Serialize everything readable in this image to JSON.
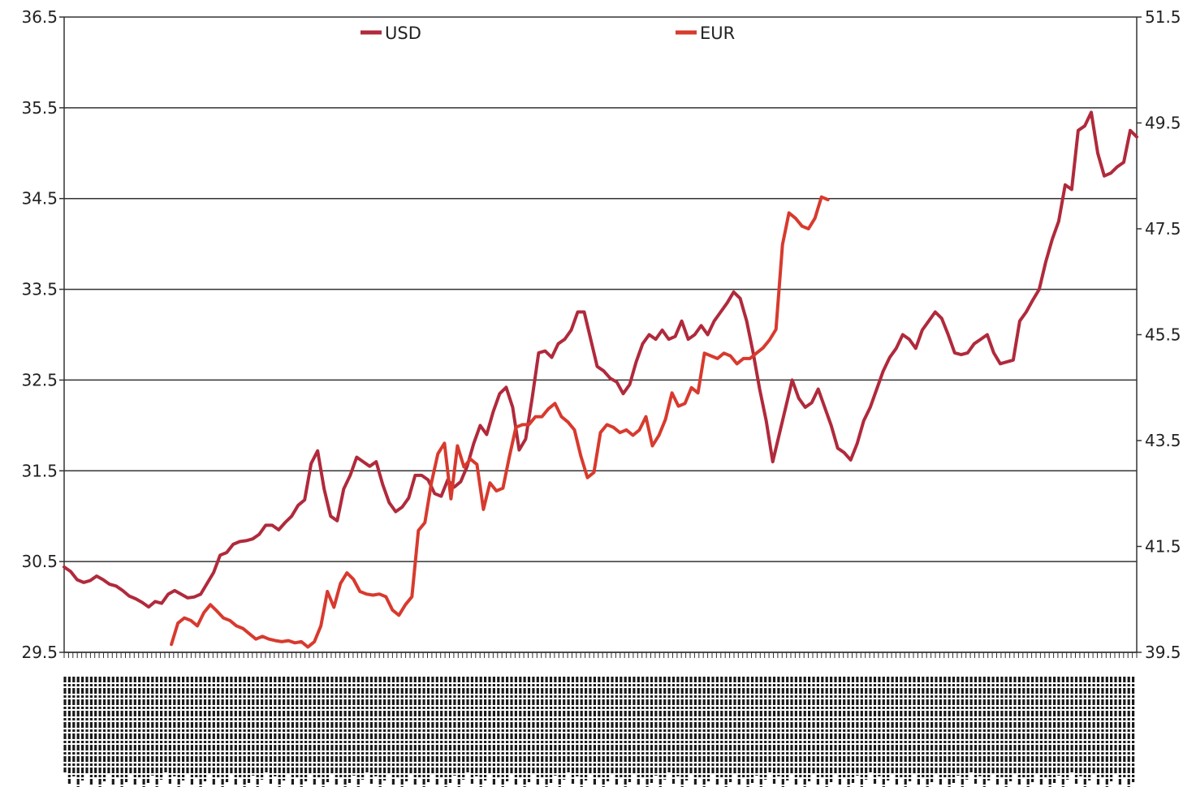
{
  "chart_data": {
    "type": "line",
    "title": "",
    "xlabel": "",
    "ylabel": "",
    "grid": true,
    "legend_placement": "top-center",
    "y_left": {
      "range": [
        29.5,
        36.5
      ],
      "ticks": [
        "29.5",
        "30.5",
        "31.5",
        "32.5",
        "33.5",
        "34.5",
        "35.5",
        "36.5"
      ]
    },
    "y_right": {
      "range": [
        39.5,
        51.5
      ],
      "ticks": [
        "39.5",
        "41.5",
        "43.5",
        "45.5",
        "47.5",
        "49.5",
        "51.5"
      ]
    },
    "x": {
      "count": 245,
      "labels_note": ""
    },
    "series": [
      {
        "name": "USD",
        "axis": "left",
        "color": "#b02a3c",
        "points": [
          [
            0,
            30.44
          ],
          [
            2,
            30.39
          ],
          [
            4,
            30.3
          ],
          [
            6,
            30.27
          ],
          [
            8,
            30.29
          ],
          [
            10,
            30.34
          ],
          [
            12,
            30.3
          ],
          [
            14,
            30.25
          ],
          [
            16,
            30.23
          ],
          [
            18,
            30.18
          ],
          [
            20,
            30.12
          ],
          [
            22,
            30.09
          ],
          [
            24,
            30.05
          ],
          [
            26,
            30.0
          ],
          [
            28,
            30.06
          ],
          [
            30,
            30.04
          ],
          [
            32,
            30.14
          ],
          [
            34,
            30.18
          ],
          [
            36,
            30.14
          ],
          [
            38,
            30.1
          ],
          [
            40,
            30.11
          ],
          [
            42,
            30.14
          ],
          [
            44,
            30.26
          ],
          [
            46,
            30.38
          ],
          [
            48,
            30.57
          ],
          [
            50,
            30.6
          ],
          [
            52,
            30.69
          ],
          [
            54,
            30.72
          ],
          [
            56,
            30.73
          ],
          [
            58,
            30.75
          ],
          [
            60,
            30.8
          ],
          [
            62,
            30.9
          ],
          [
            64,
            30.9
          ],
          [
            66,
            30.85
          ],
          [
            68,
            30.93
          ],
          [
            70,
            31.0
          ],
          [
            72,
            31.12
          ],
          [
            74,
            31.18
          ],
          [
            76,
            31.58
          ],
          [
            78,
            31.72
          ],
          [
            80,
            31.3
          ],
          [
            82,
            31.0
          ],
          [
            84,
            30.95
          ],
          [
            86,
            31.3
          ],
          [
            88,
            31.45
          ],
          [
            90,
            31.65
          ],
          [
            92,
            31.6
          ],
          [
            94,
            31.55
          ],
          [
            96,
            31.6
          ],
          [
            98,
            31.35
          ],
          [
            100,
            31.15
          ],
          [
            102,
            31.05
          ],
          [
            104,
            31.1
          ],
          [
            106,
            31.2
          ],
          [
            108,
            31.45
          ],
          [
            110,
            31.45
          ],
          [
            112,
            31.4
          ],
          [
            114,
            31.25
          ],
          [
            116,
            31.22
          ],
          [
            118,
            31.4
          ],
          [
            120,
            31.32
          ],
          [
            122,
            31.38
          ],
          [
            124,
            31.55
          ],
          [
            126,
            31.8
          ],
          [
            128,
            32.0
          ],
          [
            130,
            31.9
          ],
          [
            132,
            32.15
          ],
          [
            134,
            32.35
          ],
          [
            136,
            32.42
          ],
          [
            138,
            32.2
          ],
          [
            140,
            31.73
          ],
          [
            142,
            31.85
          ],
          [
            144,
            32.3
          ],
          [
            146,
            32.8
          ],
          [
            148,
            32.82
          ],
          [
            150,
            32.75
          ],
          [
            152,
            32.9
          ],
          [
            154,
            32.95
          ],
          [
            156,
            33.05
          ],
          [
            158,
            33.25
          ],
          [
            160,
            33.25
          ],
          [
            162,
            32.95
          ],
          [
            164,
            32.65
          ],
          [
            166,
            32.6
          ],
          [
            168,
            32.52
          ],
          [
            170,
            32.48
          ],
          [
            172,
            32.35
          ],
          [
            174,
            32.45
          ],
          [
            176,
            32.7
          ],
          [
            178,
            32.9
          ],
          [
            180,
            33.0
          ],
          [
            182,
            32.95
          ],
          [
            184,
            33.05
          ],
          [
            186,
            32.95
          ],
          [
            188,
            32.98
          ],
          [
            190,
            33.15
          ],
          [
            192,
            32.95
          ],
          [
            194,
            33.0
          ],
          [
            196,
            33.1
          ],
          [
            198,
            33.0
          ],
          [
            200,
            33.15
          ],
          [
            202,
            33.25
          ],
          [
            204,
            33.35
          ],
          [
            206,
            33.47
          ],
          [
            208,
            33.4
          ],
          [
            210,
            33.15
          ],
          [
            212,
            32.8
          ],
          [
            214,
            32.4
          ],
          [
            216,
            32.05
          ],
          [
            218,
            31.6
          ],
          [
            220,
            31.9
          ],
          [
            222,
            32.2
          ],
          [
            224,
            32.5
          ],
          [
            226,
            32.3
          ],
          [
            228,
            32.2
          ],
          [
            230,
            32.25
          ],
          [
            232,
            32.4
          ],
          [
            234,
            32.2
          ],
          [
            236,
            32.0
          ],
          [
            238,
            31.75
          ],
          [
            240,
            31.7
          ],
          [
            242,
            31.62
          ],
          [
            244,
            31.8
          ],
          [
            246,
            32.05
          ],
          [
            248,
            32.2
          ],
          [
            250,
            32.4
          ],
          [
            252,
            32.6
          ],
          [
            254,
            32.75
          ],
          [
            256,
            32.85
          ],
          [
            258,
            33.0
          ],
          [
            260,
            32.95
          ],
          [
            262,
            32.85
          ],
          [
            264,
            33.05
          ],
          [
            266,
            33.15
          ],
          [
            268,
            33.25
          ],
          [
            270,
            33.18
          ],
          [
            272,
            33.0
          ],
          [
            274,
            32.8
          ],
          [
            276,
            32.78
          ],
          [
            278,
            32.8
          ],
          [
            280,
            32.9
          ],
          [
            282,
            32.95
          ],
          [
            284,
            33.0
          ],
          [
            286,
            32.8
          ],
          [
            288,
            32.68
          ],
          [
            290,
            32.7
          ],
          [
            292,
            32.72
          ],
          [
            294,
            33.15
          ],
          [
            296,
            33.25
          ],
          [
            298,
            33.38
          ],
          [
            300,
            33.5
          ],
          [
            302,
            33.8
          ],
          [
            304,
            34.05
          ],
          [
            306,
            34.25
          ],
          [
            308,
            34.65
          ],
          [
            310,
            34.6
          ],
          [
            312,
            35.25
          ],
          [
            314,
            35.3
          ],
          [
            316,
            35.45
          ],
          [
            318,
            35.0
          ],
          [
            320,
            34.75
          ],
          [
            322,
            34.78
          ],
          [
            324,
            34.85
          ],
          [
            326,
            34.9
          ],
          [
            328,
            35.25
          ],
          [
            330,
            35.18
          ]
        ]
      },
      {
        "name": "EUR",
        "axis": "right",
        "color": "#d83a2e",
        "points": [
          [
            33,
            39.65
          ],
          [
            35,
            40.05
          ],
          [
            37,
            40.15
          ],
          [
            39,
            40.1
          ],
          [
            41,
            40.0
          ],
          [
            43,
            40.25
          ],
          [
            45,
            40.4
          ],
          [
            47,
            40.28
          ],
          [
            49,
            40.15
          ],
          [
            51,
            40.1
          ],
          [
            53,
            40.0
          ],
          [
            55,
            39.95
          ],
          [
            57,
            39.85
          ],
          [
            59,
            39.75
          ],
          [
            61,
            39.8
          ],
          [
            63,
            39.75
          ],
          [
            65,
            39.72
          ],
          [
            67,
            39.7
          ],
          [
            69,
            39.72
          ],
          [
            71,
            39.68
          ],
          [
            73,
            39.7
          ],
          [
            75,
            39.6
          ],
          [
            77,
            39.7
          ],
          [
            79,
            40.0
          ],
          [
            81,
            40.65
          ],
          [
            83,
            40.35
          ],
          [
            85,
            40.8
          ],
          [
            87,
            41.0
          ],
          [
            89,
            40.88
          ],
          [
            91,
            40.65
          ],
          [
            93,
            40.6
          ],
          [
            95,
            40.58
          ],
          [
            97,
            40.6
          ],
          [
            99,
            40.55
          ],
          [
            101,
            40.3
          ],
          [
            103,
            40.2
          ],
          [
            105,
            40.4
          ],
          [
            107,
            40.55
          ],
          [
            109,
            41.8
          ],
          [
            111,
            41.95
          ],
          [
            113,
            42.7
          ],
          [
            115,
            43.25
          ],
          [
            117,
            43.45
          ],
          [
            119,
            42.4
          ],
          [
            121,
            43.4
          ],
          [
            123,
            43.0
          ],
          [
            125,
            43.15
          ],
          [
            127,
            43.05
          ],
          [
            129,
            42.2
          ],
          [
            131,
            42.7
          ],
          [
            133,
            42.55
          ],
          [
            135,
            42.6
          ],
          [
            137,
            43.2
          ],
          [
            139,
            43.75
          ],
          [
            141,
            43.8
          ],
          [
            143,
            43.8
          ],
          [
            145,
            43.95
          ],
          [
            147,
            43.95
          ],
          [
            149,
            44.1
          ],
          [
            151,
            44.2
          ],
          [
            153,
            43.95
          ],
          [
            155,
            43.85
          ],
          [
            157,
            43.7
          ],
          [
            159,
            43.2
          ],
          [
            161,
            42.8
          ],
          [
            163,
            42.9
          ],
          [
            165,
            43.65
          ],
          [
            167,
            43.8
          ],
          [
            169,
            43.75
          ],
          [
            171,
            43.65
          ],
          [
            173,
            43.7
          ],
          [
            175,
            43.6
          ],
          [
            177,
            43.7
          ],
          [
            179,
            43.95
          ],
          [
            181,
            43.4
          ],
          [
            183,
            43.6
          ],
          [
            185,
            43.9
          ],
          [
            187,
            44.4
          ],
          [
            189,
            44.15
          ],
          [
            191,
            44.2
          ],
          [
            193,
            44.5
          ],
          [
            195,
            44.4
          ],
          [
            197,
            45.15
          ],
          [
            199,
            45.1
          ],
          [
            201,
            45.05
          ],
          [
            203,
            45.15
          ],
          [
            205,
            45.1
          ],
          [
            207,
            44.95
          ],
          [
            209,
            45.05
          ],
          [
            211,
            45.05
          ],
          [
            213,
            45.15
          ],
          [
            215,
            45.25
          ],
          [
            217,
            45.4
          ],
          [
            219,
            45.6
          ],
          [
            221,
            47.2
          ],
          [
            223,
            47.8
          ],
          [
            225,
            47.7
          ],
          [
            227,
            47.55
          ],
          [
            229,
            47.5
          ],
          [
            231,
            47.7
          ],
          [
            233,
            48.1
          ],
          [
            235,
            48.05
          ]
        ]
      }
    ]
  }
}
